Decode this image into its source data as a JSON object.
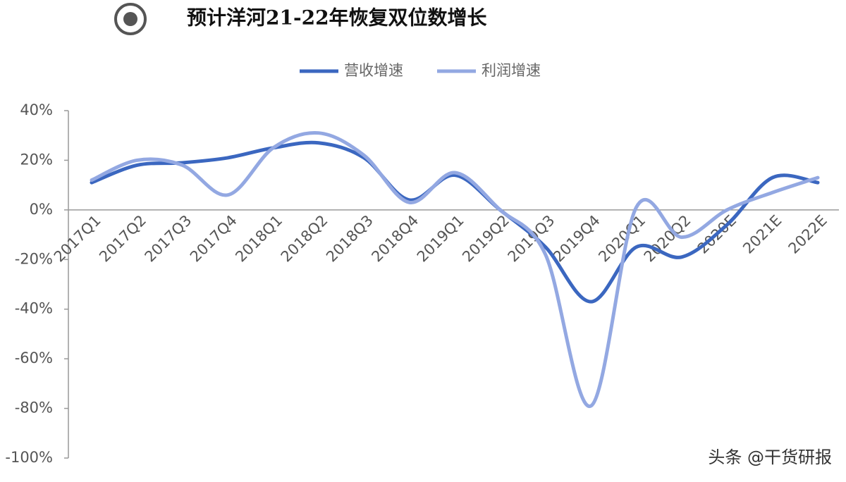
{
  "chart_data": {
    "type": "line",
    "title": "预计洋河21-22年恢复双位数增长",
    "watermark": "头条 @干货研报",
    "categories": [
      "2017Q1",
      "2017Q2",
      "2017Q3",
      "2017Q4",
      "2018Q1",
      "2018Q2",
      "2018Q3",
      "2018Q4",
      "2019Q1",
      "2019Q2",
      "2019Q3",
      "2019Q4",
      "2020Q1",
      "2020Q2",
      "2020E",
      "2021E",
      "2022E"
    ],
    "series": [
      {
        "name": "营收增速",
        "color": "#3b67c0",
        "values": [
          11,
          18,
          19,
          21,
          25,
          27,
          21,
          4,
          14,
          0,
          -15,
          -37,
          -15,
          -19,
          -6,
          13,
          11
        ]
      },
      {
        "name": "利润增速",
        "color": "#93a8e2",
        "values": [
          12,
          20,
          18,
          6,
          25,
          31,
          22,
          3,
          15,
          0,
          -18,
          -79,
          1,
          -11,
          0,
          7,
          13
        ]
      }
    ],
    "ylim": [
      -100,
      40
    ],
    "yticks": [
      {
        "value": 40,
        "label": "40%"
      },
      {
        "value": 20,
        "label": "20%"
      },
      {
        "value": 0,
        "label": "0%"
      },
      {
        "value": -20,
        "label": "-20%"
      },
      {
        "value": -40,
        "label": "-40%"
      },
      {
        "value": -60,
        "label": "-60%"
      },
      {
        "value": -80,
        "label": "-80%"
      },
      {
        "value": -100,
        "label": "-100%"
      }
    ],
    "legend": "top"
  }
}
